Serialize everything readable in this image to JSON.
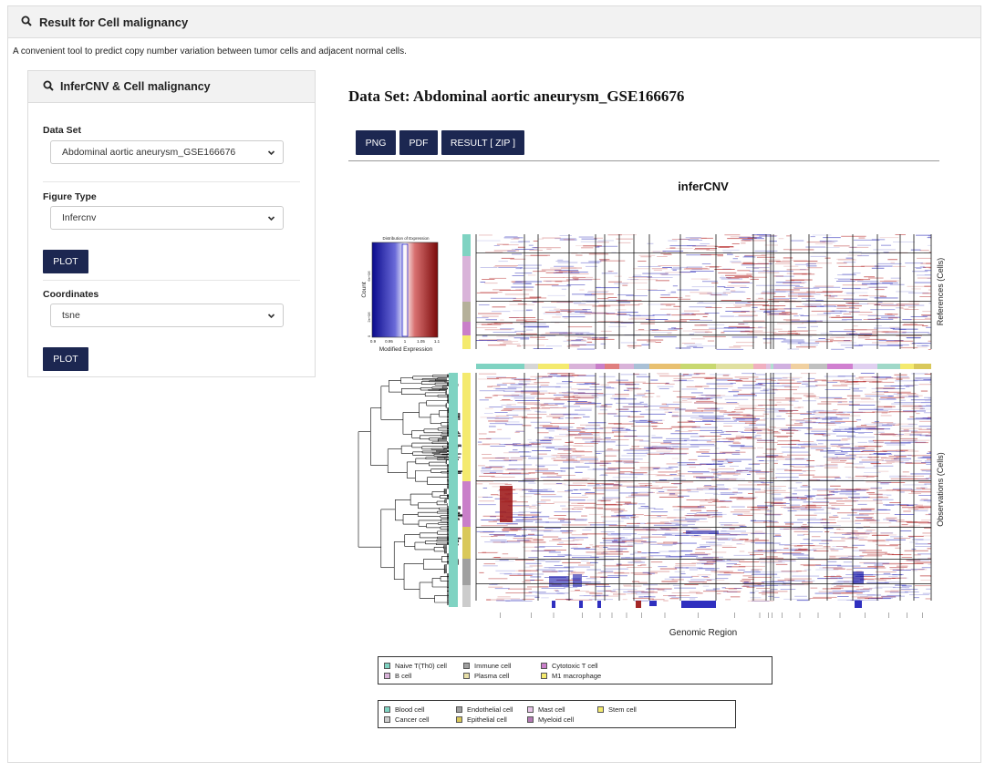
{
  "panel": {
    "title": "Result for Cell malignancy"
  },
  "description": "A convenient tool to predict copy number variation between tumor cells and adjacent normal cells.",
  "sidebar": {
    "title": "InferCNV & Cell malignancy",
    "dataset_label": "Data Set",
    "dataset_value": "Abdominal aortic aneurysm_GSE166676",
    "figure_label": "Figure Type",
    "figure_value": "Infercnv",
    "plot1_label": "PLOT",
    "coord_label": "Coordinates",
    "coord_value": "tsne",
    "plot2_label": "PLOT"
  },
  "main": {
    "title": "Data Set: Abdominal aortic aneurysm_GSE166676",
    "buttons": {
      "png": "PNG",
      "pdf": "PDF",
      "zip": "RESULT [ ZIP ]"
    }
  },
  "figure": {
    "title": "inferCNV",
    "ref_label": "References (Cells)",
    "obs_label": "Observations (Cells)",
    "x_label": "Genomic Region",
    "key": {
      "title": "Distribution of Expression",
      "xlabel": "Modified Expression",
      "ylabel": "Count",
      "ticks": [
        "0.9",
        "0.95",
        "1",
        "1.05",
        "1.1"
      ],
      "yticks": [
        "0",
        "2e+06",
        "6e+06"
      ]
    }
  },
  "legend1": [
    {
      "label": "Naive T(Th0) cell",
      "color": "#7fd3c2"
    },
    {
      "label": "Immune cell",
      "color": "#a0a0a0"
    },
    {
      "label": "Cytotoxic T cell",
      "color": "#c97fc9"
    },
    {
      "label": "B cell",
      "color": "#d9b3d9"
    },
    {
      "label": "Plasma cell",
      "color": "#e8e0a8"
    },
    {
      "label": "M1 macrophage",
      "color": "#f4ea6e"
    }
  ],
  "legend2": [
    {
      "label": "Blood cell",
      "color": "#7fd3c2"
    },
    {
      "label": "Endothelial cell",
      "color": "#a0a0a0"
    },
    {
      "label": "Mast cell",
      "color": "#e6c4e6"
    },
    {
      "label": "Stem cell",
      "color": "#f4ea6e"
    },
    {
      "label": "Cancer cell",
      "color": "#cccccc"
    },
    {
      "label": "Epithelial cell",
      "color": "#d9c85a"
    },
    {
      "label": "Myeloid cell",
      "color": "#b47ab4"
    }
  ]
}
